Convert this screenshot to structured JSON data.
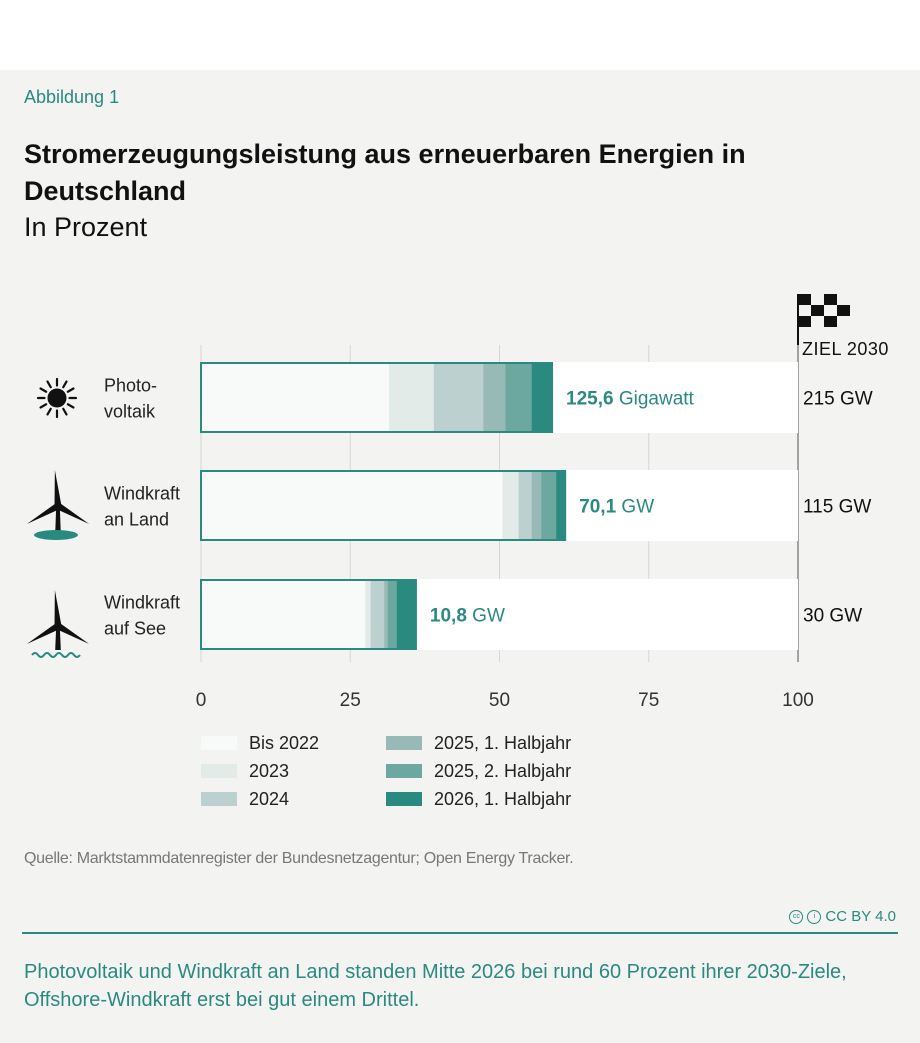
{
  "figure_label": "Abbildung 1",
  "title": "Stromerzeugungsleistung aus erneuerbaren Energien in Deutschland",
  "subtitle": "In Prozent",
  "source": "Quelle: Marktstammdatenregister der Bundesnetzagentur; Open Energy Tracker.",
  "license": "CC BY 4.0",
  "caption": "Photovoltaik und Windkraft an Land standen Mitte 2026 bei rund 60 Prozent ihrer 2030-Ziele, Offshore-Windkraft erst bei gut einem Drittel.",
  "colors": {
    "accent": "#2a8a80",
    "bis2022": "#f8f9f9",
    "y2023": "#e3ebe8",
    "y2024": "#bcd0cf",
    "h1_2025": "#97bab6",
    "h2_2025": "#6ca7a0",
    "h1_2026": "#2a8a80"
  },
  "chart_data": {
    "type": "bar",
    "orientation": "horizontal",
    "stacked": true,
    "xlim": [
      0,
      100
    ],
    "xticks": [
      "0",
      "25",
      "50",
      "75",
      "100"
    ],
    "goal_header": "ZIEL 2030",
    "categories": [
      {
        "label_line1": "Photo-",
        "label_line2": "voltaik",
        "icon": "sun-icon",
        "value_bold": "125,6",
        "value_unit": "Gigawatt",
        "goal": "215 GW"
      },
      {
        "label_line1": "Windkraft",
        "label_line2": "an Land",
        "icon": "wind-turbine-land-icon",
        "value_bold": "70,1",
        "value_unit": "GW",
        "goal": "115 GW"
      },
      {
        "label_line1": "Windkraft",
        "label_line2": "auf See",
        "icon": "wind-turbine-sea-icon",
        "value_bold": "10,8",
        "value_unit": "GW",
        "goal": "30 GW"
      }
    ],
    "series": [
      {
        "name": "Bis 2022",
        "color": "#f8f9f9",
        "values": [
          31.5,
          50.5,
          27.5
        ]
      },
      {
        "name": "2023",
        "color": "#e3ebe8",
        "values": [
          7.5,
          2.7,
          0.9
        ]
      },
      {
        "name": "2024",
        "color": "#bcd0cf",
        "values": [
          8.3,
          2.2,
          2.3
        ]
      },
      {
        "name": "2025, 1. Halbjahr",
        "color": "#97bab6",
        "values": [
          3.7,
          1.6,
          0.6
        ]
      },
      {
        "name": "2025, 2. Halbjahr",
        "color": "#6ca7a0",
        "values": [
          4.4,
          2.5,
          1.5
        ]
      },
      {
        "name": "2026, 1. Halbjahr",
        "color": "#2a8a80",
        "values": [
          3.4,
          1.5,
          3.2
        ]
      }
    ]
  }
}
